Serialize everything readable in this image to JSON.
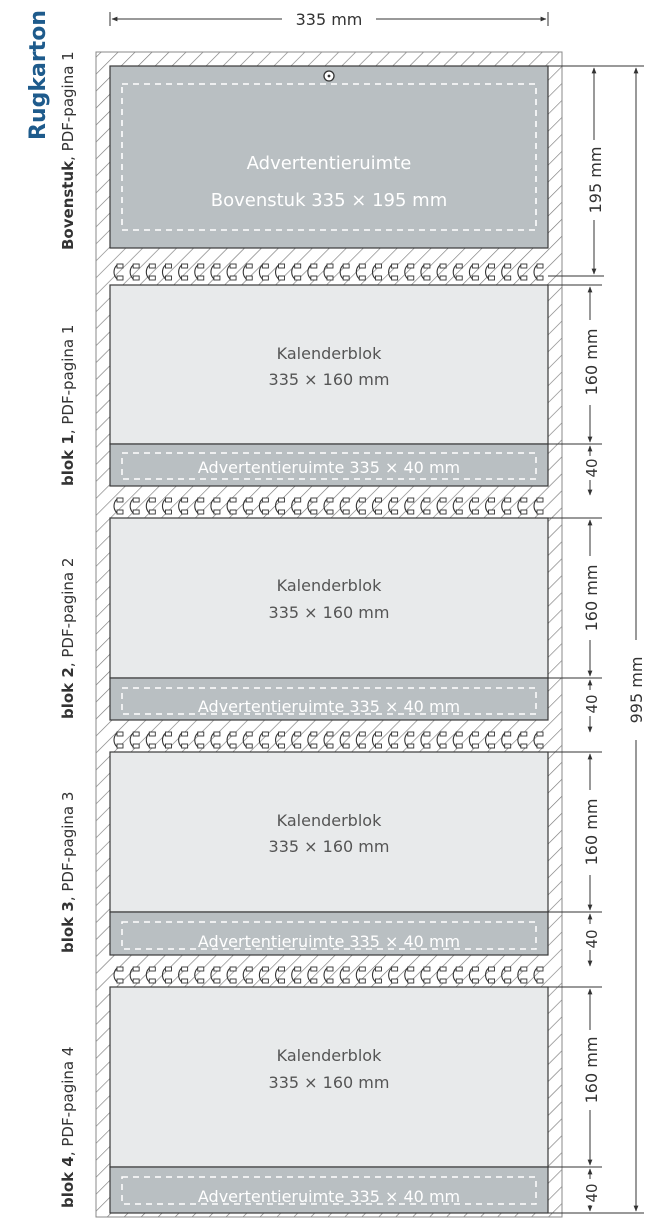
{
  "title": "Rugkarton",
  "width_label": "335 mm",
  "total_height_label": "995 mm",
  "colors": {
    "accent": "#1e5b8c",
    "ad_area": "#b9bfc2",
    "calendar_area": "#e8eaeb",
    "outline": "#3a3a3a",
    "dim_line": "#333333",
    "hatch": "#6e6e6e"
  },
  "header": {
    "side_label_bold": "Bovenstuk",
    "side_label_rest": ", PDF-pagina 1",
    "ad_line1": "Advertentieruimte",
    "ad_line2": "Bovenstuk 335 × 195 mm",
    "height_label": "195 mm",
    "hanger_icon": "hanger-hole-icon"
  },
  "blocks": [
    {
      "side_label_bold": "blok 1",
      "side_label_rest": ", PDF-pagina 1",
      "cal_line1": "Kalenderblok",
      "cal_line2": "335 × 160 mm",
      "ad_label": "Advertentieruimte 335 × 40 mm",
      "cal_height_label": "160 mm",
      "ad_height_label": "40"
    },
    {
      "side_label_bold": "blok 2",
      "side_label_rest": ", PDF-pagina 2",
      "cal_line1": "Kalenderblok",
      "cal_line2": "335 × 160 mm",
      "ad_label": "Advertentieruimte 335 × 40 mm",
      "cal_height_label": "160 mm",
      "ad_height_label": "40"
    },
    {
      "side_label_bold": "blok 3",
      "side_label_rest": ", PDF-pagina 3",
      "cal_line1": "Kalenderblok",
      "cal_line2": "335 × 160 mm",
      "ad_label": "Advertentieruimte 335 × 40 mm",
      "cal_height_label": "160 mm",
      "ad_height_label": "40"
    },
    {
      "side_label_bold": "blok 4",
      "side_label_rest": ", PDF-pagina 4",
      "cal_line1": "Kalenderblok",
      "cal_line2": "335 × 160 mm",
      "ad_label": "Advertentieruimte 335 × 40 mm",
      "cal_height_label": "160 mm",
      "ad_height_label": "40"
    }
  ]
}
